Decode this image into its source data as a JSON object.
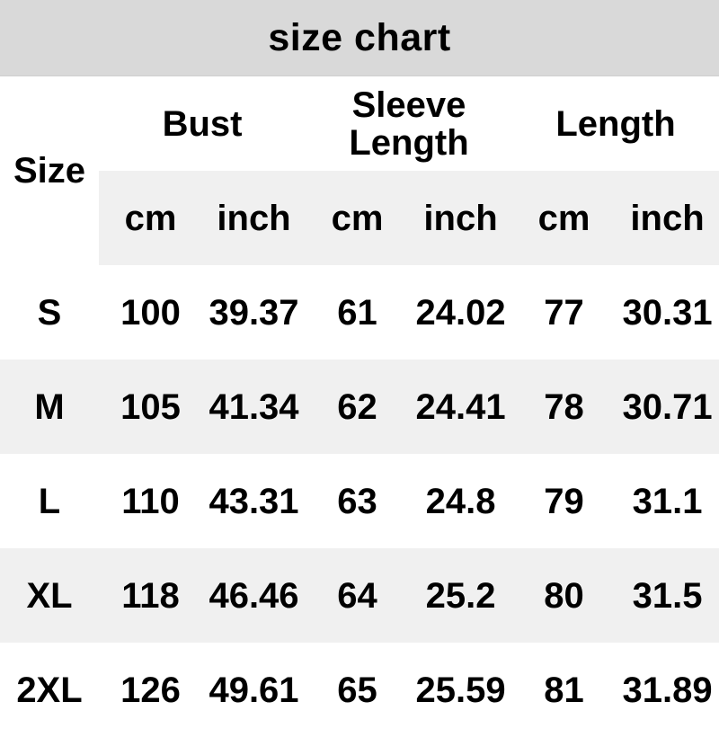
{
  "header": {
    "title": "size chart"
  },
  "table": {
    "size_header": "Size",
    "groups": [
      "Bust",
      "Sleeve Length",
      "Length"
    ],
    "units": [
      "cm",
      "inch",
      "cm",
      "inch",
      "cm",
      "inch"
    ],
    "rows": [
      {
        "size": "S",
        "values": [
          "100",
          "39.37",
          "61",
          "24.02",
          "77",
          "30.31"
        ]
      },
      {
        "size": "M",
        "values": [
          "105",
          "41.34",
          "62",
          "24.41",
          "78",
          "30.71"
        ]
      },
      {
        "size": "L",
        "values": [
          "110",
          "43.31",
          "63",
          "24.8",
          "79",
          "31.1"
        ]
      },
      {
        "size": "XL",
        "values": [
          "118",
          "46.46",
          "64",
          "25.2",
          "80",
          "31.5"
        ]
      },
      {
        "size": "2XL",
        "values": [
          "126",
          "49.61",
          "65",
          "25.59",
          "81",
          "31.89"
        ]
      }
    ]
  },
  "colors": {
    "title_bar_bg": "#d9d9d9",
    "stripe_bg": "#f0f0f0",
    "text": "#000000",
    "page_bg": "#ffffff"
  },
  "chart_data": {
    "type": "table",
    "title": "size chart",
    "columns": [
      "Size",
      "Bust cm",
      "Bust inch",
      "Sleeve Length cm",
      "Sleeve Length inch",
      "Length cm",
      "Length inch"
    ],
    "rows": [
      [
        "S",
        100,
        39.37,
        61,
        24.02,
        77,
        30.31
      ],
      [
        "M",
        105,
        41.34,
        62,
        24.41,
        78,
        30.71
      ],
      [
        "L",
        110,
        43.31,
        63,
        24.8,
        79,
        31.1
      ],
      [
        "XL",
        118,
        46.46,
        64,
        25.2,
        80,
        31.5
      ],
      [
        "2XL",
        126,
        49.61,
        65,
        25.59,
        81,
        31.89
      ]
    ],
    "layout": {
      "striped_rows": [
        "M",
        "XL"
      ],
      "unit_row_shaded": true,
      "grid": false
    }
  }
}
